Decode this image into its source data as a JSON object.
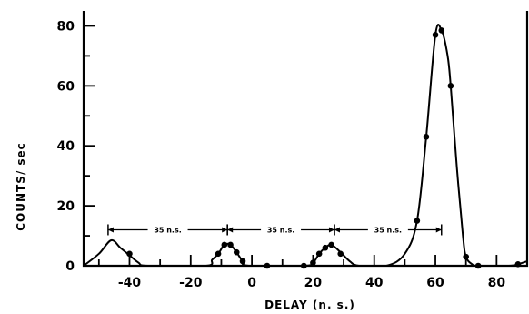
{
  "chart_data": {
    "type": "scatter",
    "title": "",
    "xlabel": "DELAY (n. s.)",
    "ylabel": "COUNTS/ sec",
    "xlim": [
      -55,
      90
    ],
    "ylim": [
      0,
      85
    ],
    "x_ticks": [
      -40,
      -20,
      0,
      20,
      40,
      60,
      80
    ],
    "x_tick_labels": [
      "-40",
      "-20",
      "0",
      "20",
      "40",
      "60",
      "80"
    ],
    "y_ticks": [
      0,
      20,
      40,
      60,
      80
    ],
    "y_tick_labels": [
      "0",
      "20",
      "40",
      "60",
      "80"
    ],
    "grid": false,
    "legend": "none",
    "series": [
      {
        "type": "points",
        "points": [
          {
            "x": -40,
            "y": 4
          },
          {
            "x": -11,
            "y": 4
          },
          {
            "x": -9,
            "y": 7
          },
          {
            "x": -7,
            "y": 7
          },
          {
            "x": -5,
            "y": 4.5
          },
          {
            "x": -3,
            "y": 1.5
          },
          {
            "x": 5,
            "y": 0
          },
          {
            "x": 17,
            "y": 0
          },
          {
            "x": 20,
            "y": 1
          },
          {
            "x": 22,
            "y": 4
          },
          {
            "x": 24,
            "y": 6
          },
          {
            "x": 26,
            "y": 7
          },
          {
            "x": 29,
            "y": 4
          },
          {
            "x": 54,
            "y": 15
          },
          {
            "x": 57,
            "y": 43
          },
          {
            "x": 60,
            "y": 77
          },
          {
            "x": 62,
            "y": 78.5
          },
          {
            "x": 65,
            "y": 60
          },
          {
            "x": 70,
            "y": 3
          },
          {
            "x": 74,
            "y": 0
          },
          {
            "x": 87,
            "y": 0.5
          }
        ]
      },
      {
        "type": "curve",
        "points": [
          [
            -55,
            0
          ],
          [
            -50,
            4
          ],
          [
            -46,
            8.5
          ],
          [
            -43,
            6
          ],
          [
            -40,
            3.5
          ],
          [
            -37,
            1
          ],
          [
            -34,
            0
          ],
          [
            -15,
            0
          ],
          [
            -13,
            2
          ],
          [
            -11,
            4
          ],
          [
            -9,
            7
          ],
          [
            -7,
            7
          ],
          [
            -5,
            4.5
          ],
          [
            -3,
            1.5
          ],
          [
            -1,
            0
          ],
          [
            17,
            0
          ],
          [
            20,
            1
          ],
          [
            22,
            4
          ],
          [
            24,
            6
          ],
          [
            26,
            7
          ],
          [
            29,
            4.5
          ],
          [
            32,
            1.5
          ],
          [
            35,
            0
          ],
          [
            44,
            0
          ],
          [
            50,
            4
          ],
          [
            54,
            15
          ],
          [
            57,
            43
          ],
          [
            60,
            77
          ],
          [
            62,
            78.5
          ],
          [
            64,
            70
          ],
          [
            65,
            60
          ],
          [
            67,
            33
          ],
          [
            69,
            10
          ],
          [
            70,
            3
          ],
          [
            72,
            0.5
          ],
          [
            74,
            0
          ],
          [
            84,
            0
          ],
          [
            87,
            0.5
          ],
          [
            90,
            1.5
          ]
        ]
      }
    ],
    "annotations": [
      {
        "x1": -47,
        "x2": -8,
        "y": 12,
        "label": "35 n.s."
      },
      {
        "x1": -8,
        "x2": 27,
        "y": 12,
        "label": "35 n.s."
      },
      {
        "x1": 27,
        "x2": 62,
        "y": 12,
        "label": "35 n.s."
      }
    ]
  }
}
